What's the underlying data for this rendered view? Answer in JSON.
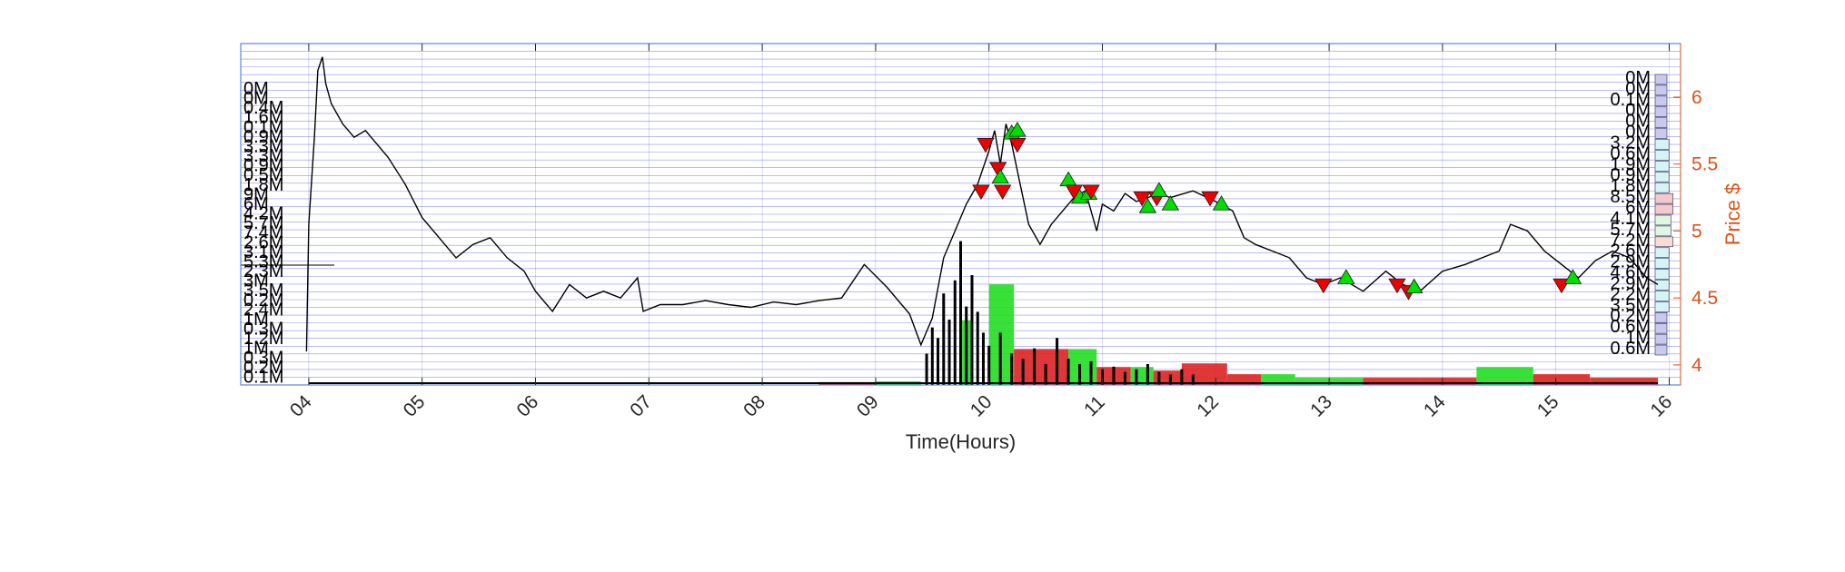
{
  "chart_data": {
    "type": "line",
    "title": "",
    "xlabel": "Time(Hours)",
    "ylabel": "Price $",
    "x_range_hours": [
      3.4,
      16.1
    ],
    "ylim": [
      3.85,
      6.4
    ],
    "x_tick_labels": [
      "04",
      "05",
      "06",
      "07",
      "08",
      "09",
      "10",
      "11",
      "12",
      "13",
      "14",
      "15",
      "16"
    ],
    "x_tick_values": [
      4,
      5,
      6,
      7,
      8,
      9,
      10,
      11,
      12,
      13,
      14,
      15,
      16
    ],
    "y_tick_labels": [
      "4",
      "4.5",
      "5",
      "5.5",
      "6"
    ],
    "y_tick_values": [
      4,
      4.5,
      5,
      5.5,
      6
    ],
    "grid": true,
    "colors": {
      "price_line": "#000000",
      "axis_right": "#d95319",
      "grid": "#3b3bd6",
      "buy_marker": "#00dd00",
      "sell_marker": "#ee0000",
      "volume_up": "#22dd22",
      "volume_down": "#dd2222",
      "volume_neutral": "#000000"
    },
    "price_series": {
      "name": "",
      "x": [
        3.98,
        4.0,
        4.05,
        4.08,
        4.12,
        4.15,
        4.2,
        4.3,
        4.4,
        4.5,
        4.6,
        4.7,
        4.85,
        5.0,
        5.1,
        5.2,
        5.3,
        5.45,
        5.6,
        5.75,
        5.9,
        6.0,
        6.15,
        6.3,
        6.45,
        6.6,
        6.75,
        6.9,
        6.95,
        7.1,
        7.3,
        7.5,
        7.7,
        7.9,
        8.1,
        8.3,
        8.5,
        8.7,
        8.9,
        9.1,
        9.3,
        9.4,
        9.5,
        9.6,
        9.7,
        9.8,
        9.9,
        10.0,
        10.05,
        10.1,
        10.15,
        10.2,
        10.25,
        10.35,
        10.45,
        10.55,
        10.65,
        10.75,
        10.85,
        10.95,
        11.0,
        11.1,
        11.2,
        11.3,
        11.4,
        11.5,
        11.6,
        11.8,
        12.0,
        12.15,
        12.25,
        12.35,
        12.5,
        12.65,
        12.8,
        12.95,
        13.1,
        13.3,
        13.5,
        13.65,
        13.8,
        14.0,
        14.2,
        14.35,
        14.5,
        14.6,
        14.75,
        14.9,
        15.05,
        15.2,
        15.35,
        15.5,
        15.65,
        15.8,
        15.9
      ],
      "y": [
        4.1,
        5.05,
        5.7,
        6.2,
        6.3,
        6.1,
        5.95,
        5.8,
        5.7,
        5.75,
        5.65,
        5.55,
        5.35,
        5.1,
        5.0,
        4.9,
        4.8,
        4.9,
        4.95,
        4.8,
        4.7,
        4.55,
        4.4,
        4.6,
        4.5,
        4.55,
        4.5,
        4.65,
        4.4,
        4.45,
        4.45,
        4.48,
        4.45,
        4.43,
        4.47,
        4.45,
        4.48,
        4.5,
        4.75,
        4.58,
        4.38,
        4.15,
        4.35,
        4.8,
        5.0,
        5.2,
        5.35,
        5.6,
        5.75,
        5.5,
        5.8,
        5.65,
        5.45,
        5.05,
        4.9,
        5.05,
        5.15,
        5.25,
        5.3,
        5.0,
        5.2,
        5.15,
        5.28,
        5.22,
        5.25,
        5.28,
        5.25,
        5.3,
        5.22,
        5.15,
        4.95,
        4.9,
        4.85,
        4.8,
        4.65,
        4.6,
        4.65,
        4.55,
        4.7,
        4.6,
        4.55,
        4.7,
        4.75,
        4.8,
        4.85,
        5.05,
        5.0,
        4.85,
        4.75,
        4.65,
        4.78,
        4.85,
        4.8,
        4.65,
        4.6
      ]
    },
    "trade_markers": [
      {
        "side": "sell",
        "x": 9.97,
        "y": 5.65
      },
      {
        "side": "sell",
        "x": 9.93,
        "y": 5.3
      },
      {
        "side": "sell",
        "x": 10.08,
        "y": 5.47
      },
      {
        "side": "sell",
        "x": 10.12,
        "y": 5.3
      },
      {
        "side": "buy",
        "x": 10.1,
        "y": 5.4
      },
      {
        "side": "buy",
        "x": 10.2,
        "y": 5.73
      },
      {
        "side": "buy",
        "x": 10.25,
        "y": 5.75
      },
      {
        "side": "sell",
        "x": 10.25,
        "y": 5.65
      },
      {
        "side": "buy",
        "x": 10.7,
        "y": 5.38
      },
      {
        "side": "sell",
        "x": 10.75,
        "y": 5.3
      },
      {
        "side": "buy",
        "x": 10.8,
        "y": 5.25
      },
      {
        "side": "buy",
        "x": 10.88,
        "y": 5.28
      },
      {
        "side": "sell",
        "x": 10.9,
        "y": 5.3
      },
      {
        "side": "sell",
        "x": 11.35,
        "y": 5.25
      },
      {
        "side": "buy",
        "x": 11.4,
        "y": 5.18
      },
      {
        "side": "sell",
        "x": 11.48,
        "y": 5.25
      },
      {
        "side": "buy",
        "x": 11.5,
        "y": 5.3
      },
      {
        "side": "buy",
        "x": 11.6,
        "y": 5.2
      },
      {
        "side": "sell",
        "x": 11.95,
        "y": 5.25
      },
      {
        "side": "buy",
        "x": 12.05,
        "y": 5.2
      },
      {
        "side": "sell",
        "x": 12.95,
        "y": 4.6
      },
      {
        "side": "buy",
        "x": 13.15,
        "y": 4.65
      },
      {
        "side": "sell",
        "x": 13.6,
        "y": 4.6
      },
      {
        "side": "sell",
        "x": 13.7,
        "y": 4.55
      },
      {
        "side": "buy",
        "x": 13.75,
        "y": 4.58
      },
      {
        "side": "sell",
        "x": 15.05,
        "y": 4.6
      },
      {
        "side": "buy",
        "x": 15.15,
        "y": 4.65
      }
    ],
    "volume_blocks": [
      {
        "x0": 9.75,
        "x1": 9.85,
        "level": 0.18,
        "color": "up"
      },
      {
        "x0": 10.0,
        "x1": 10.22,
        "level": 0.28,
        "color": "up"
      },
      {
        "x0": 10.22,
        "x1": 10.7,
        "level": 0.1,
        "color": "down"
      },
      {
        "x0": 10.7,
        "x1": 10.95,
        "level": 0.1,
        "color": "up"
      },
      {
        "x0": 10.95,
        "x1": 11.25,
        "level": 0.05,
        "color": "down"
      },
      {
        "x0": 11.25,
        "x1": 11.45,
        "level": 0.05,
        "color": "up"
      },
      {
        "x0": 11.45,
        "x1": 11.7,
        "level": 0.04,
        "color": "down"
      },
      {
        "x0": 11.7,
        "x1": 12.1,
        "level": 0.06,
        "color": "down"
      },
      {
        "x0": 12.1,
        "x1": 12.4,
        "level": 0.03,
        "color": "down"
      },
      {
        "x0": 12.4,
        "x1": 12.7,
        "level": 0.03,
        "color": "up"
      },
      {
        "x0": 12.7,
        "x1": 13.3,
        "level": 0.02,
        "color": "up"
      },
      {
        "x0": 13.3,
        "x1": 13.8,
        "level": 0.02,
        "color": "down"
      },
      {
        "x0": 13.8,
        "x1": 14.3,
        "level": 0.02,
        "color": "down"
      },
      {
        "x0": 14.3,
        "x1": 14.8,
        "level": 0.05,
        "color": "up"
      },
      {
        "x0": 14.8,
        "x1": 15.3,
        "level": 0.03,
        "color": "down"
      },
      {
        "x0": 15.3,
        "x1": 15.9,
        "level": 0.02,
        "color": "down"
      },
      {
        "x0": 9.0,
        "x1": 9.4,
        "level": 0.01,
        "color": "up"
      },
      {
        "x0": 8.5,
        "x1": 9.0,
        "level": 0.008,
        "color": "down"
      }
    ],
    "volume_spikes_x": [
      9.45,
      9.5,
      9.55,
      9.6,
      9.65,
      9.7,
      9.75,
      9.8,
      9.85,
      9.9,
      9.95,
      10.0,
      10.1,
      10.2,
      10.3,
      10.4,
      10.5,
      10.6,
      10.7,
      10.8,
      10.9,
      11.0,
      11.1,
      11.2,
      11.3,
      11.4,
      11.5,
      11.6,
      11.7,
      11.8
    ],
    "volume_spikes_h": [
      0.12,
      0.22,
      0.18,
      0.35,
      0.25,
      0.4,
      0.55,
      0.3,
      0.42,
      0.28,
      0.2,
      0.15,
      0.2,
      0.12,
      0.1,
      0.14,
      0.08,
      0.18,
      0.1,
      0.08,
      0.09,
      0.06,
      0.07,
      0.05,
      0.06,
      0.08,
      0.05,
      0.04,
      0.06,
      0.04
    ],
    "left_volume_profile_labels": [
      "0M",
      "0M",
      "0.4M",
      "1.6M",
      "0.1M",
      "0.9M",
      "3.3M",
      "3.3M",
      "0.9M",
      "0.5M",
      "1.8M",
      "9M",
      "6M",
      "4.2M",
      "5.7M",
      "7.4M",
      "2.6M",
      "3.1M",
      "5.3M",
      "2.3M",
      "3M",
      "3.5M",
      "0.2M",
      "2.4M",
      "1M",
      "0.3M",
      "1.2M",
      "1M",
      "0.3M",
      "0.2M",
      "0.1M"
    ],
    "right_volume_profile_labels": [
      "0M",
      "0M",
      "0.1M",
      "0M",
      "0M",
      "0M",
      "3.2M",
      "0.6M",
      "1.9M",
      "0.9M",
      "1.8M",
      "8.5M",
      "6M",
      "4.1M",
      "5.7M",
      "7.2M",
      "2.6M",
      "2.9M",
      "4.6M",
      "2.9M",
      "2.2M",
      "3.5M",
      "0.2M",
      "0.6M",
      "1M",
      "0.6M"
    ],
    "right_volume_profile_colors": [
      "#c9c9ee",
      "#c9c9ee",
      "#c9c9ee",
      "#c9c9ee",
      "#c9c9ee",
      "#c9c9ee",
      "#d6f4f6",
      "#d6f4f6",
      "#d6f4f6",
      "#d6f4f6",
      "#d6f4f6",
      "#f3c9c9",
      "#f3c9c9",
      "#dff6e2",
      "#dff6e2",
      "#f9dcd0",
      "#d6f4f6",
      "#d6f4f6",
      "#d6f4f6",
      "#d6f4f6",
      "#d6f4f6",
      "#d6f4f6",
      "#c9c9ee",
      "#c9c9ee",
      "#c9c9ee",
      "#c9c9ee"
    ],
    "right_volume_profile_fill": [
      0.5,
      0.5,
      0.5,
      0.5,
      0.5,
      0.5,
      0.6,
      0.6,
      0.6,
      0.6,
      0.6,
      0.8,
      0.8,
      0.7,
      0.7,
      0.8,
      0.6,
      0.6,
      0.6,
      0.6,
      0.6,
      0.6,
      0.5,
      0.5,
      0.5,
      0.5
    ]
  }
}
